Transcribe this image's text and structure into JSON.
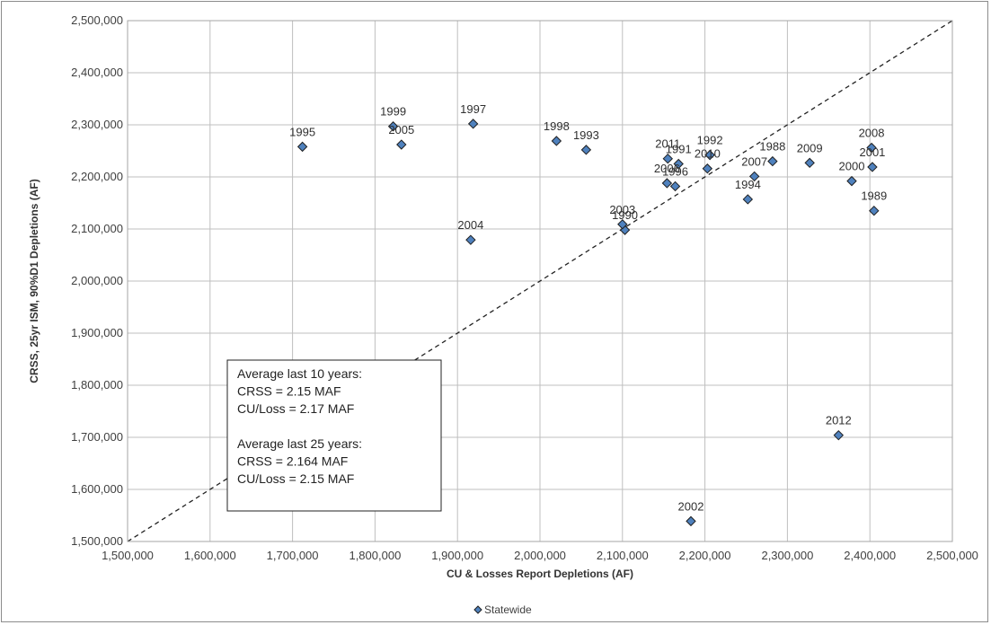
{
  "chart_data": {
    "type": "scatter",
    "title": "",
    "xlabel": "CU & Losses Report Depletions (AF)",
    "ylabel": "CRSS, 25yr ISM, 90%D1 Depletions (AF)",
    "xlim": [
      1500000,
      2500000
    ],
    "ylim": [
      1500000,
      2500000
    ],
    "x_ticks": [
      "1,500,000",
      "1,600,000",
      "1,700,000",
      "1,800,000",
      "1,900,000",
      "2,000,000",
      "2,100,000",
      "2,200,000",
      "2,300,000",
      "2,400,000",
      "2,500,000"
    ],
    "y_ticks": [
      "1,500,000",
      "1,600,000",
      "1,700,000",
      "1,800,000",
      "1,900,000",
      "2,000,000",
      "2,100,000",
      "2,200,000",
      "2,300,000",
      "2,400,000",
      "2,500,000"
    ],
    "grid": true,
    "legend_position": "bottom",
    "reference_line": {
      "style": "dashed",
      "from": [
        1500000,
        1500000
      ],
      "to": [
        2500000,
        2500000
      ]
    },
    "series": [
      {
        "name": "Statewide",
        "color": "#4f81bd",
        "marker": "diamond",
        "points": [
          {
            "label": "1988",
            "x": 2282000,
            "y": 2230000
          },
          {
            "label": "1989",
            "x": 2405000,
            "y": 2135000
          },
          {
            "label": "1990",
            "x": 2103000,
            "y": 2098000
          },
          {
            "label": "1991",
            "x": 2168000,
            "y": 2225000
          },
          {
            "label": "1992",
            "x": 2206000,
            "y": 2242000
          },
          {
            "label": "1993",
            "x": 2056000,
            "y": 2252000
          },
          {
            "label": "1994",
            "x": 2252000,
            "y": 2157000
          },
          {
            "label": "1995",
            "x": 1712000,
            "y": 2258000
          },
          {
            "label": "1996",
            "x": 2164000,
            "y": 2182000
          },
          {
            "label": "1997",
            "x": 1919000,
            "y": 2302000
          },
          {
            "label": "1998",
            "x": 2020000,
            "y": 2269000
          },
          {
            "label": "1999",
            "x": 1822000,
            "y": 2297000
          },
          {
            "label": "2000",
            "x": 2378000,
            "y": 2192000
          },
          {
            "label": "2001",
            "x": 2403000,
            "y": 2219000
          },
          {
            "label": "2002",
            "x": 2183000,
            "y": 1539000
          },
          {
            "label": "2003",
            "x": 2100000,
            "y": 2109000
          },
          {
            "label": "2004",
            "x": 1916000,
            "y": 2079000
          },
          {
            "label": "2005",
            "x": 1832000,
            "y": 2262000
          },
          {
            "label": "2006",
            "x": 2154000,
            "y": 2188000
          },
          {
            "label": "2007",
            "x": 2260000,
            "y": 2201000
          },
          {
            "label": "2008",
            "x": 2402000,
            "y": 2256000
          },
          {
            "label": "2009",
            "x": 2327000,
            "y": 2227000
          },
          {
            "label": "2010",
            "x": 2203000,
            "y": 2216000
          },
          {
            "label": "2011",
            "x": 2155000,
            "y": 2235000
          },
          {
            "label": "2012",
            "x": 2362000,
            "y": 1704000
          }
        ]
      }
    ],
    "annotation": {
      "lines": [
        "Average last 10 years:",
        "CRSS = 2.15 MAF",
        "CU/Loss = 2.17 MAF",
        "",
        "Average last 25 years:",
        "CRSS = 2.164 MAF",
        "CU/Loss = 2.15 MAF"
      ]
    }
  }
}
